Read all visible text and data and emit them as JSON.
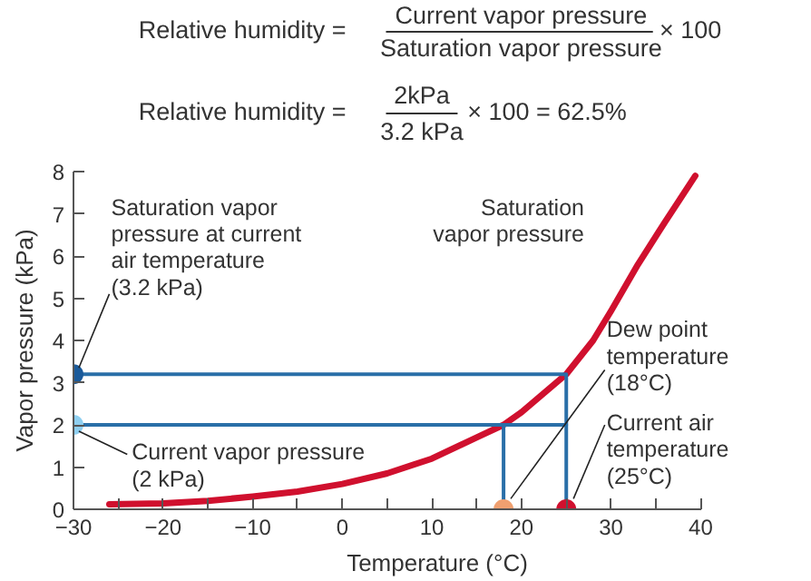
{
  "chart_data": {
    "type": "line",
    "xlabel": "Temperature (°C)",
    "ylabel": "Vapor pressure (kPa)",
    "xlim": [
      -30,
      40
    ],
    "xticks": [
      {
        "value": -30,
        "label": "−30"
      },
      {
        "value": -20,
        "label": "−20"
      },
      {
        "value": -10,
        "label": "−10"
      },
      0,
      10,
      20,
      30,
      40
    ],
    "ylim": [
      0,
      8
    ],
    "yticks": [
      0,
      1,
      2,
      3,
      4,
      5,
      6,
      7,
      8
    ],
    "grid": false,
    "line_style": "solid",
    "series": [
      {
        "color": "#d0102e",
        "x": [
          -26,
          -20,
          -15,
          -10,
          -5,
          0,
          5,
          10,
          15,
          18,
          20,
          25,
          28,
          30,
          33,
          36,
          39.4
        ],
        "values": [
          0.12,
          0.14,
          0.2,
          0.3,
          0.42,
          0.6,
          0.85,
          1.2,
          1.7,
          2.0,
          2.3,
          3.2,
          4.0,
          4.7,
          5.8,
          6.8,
          7.9
        ]
      },
      {
        "color": "#2a6fa8",
        "x": [
          -30,
          25,
          25
        ],
        "values": [
          3.2,
          3.2,
          0
        ]
      },
      {
        "color": "#2a6fa8",
        "x": [
          -30,
          25
        ],
        "values": [
          2,
          2
        ]
      },
      {
        "color": "#2a6fa8",
        "x": [
          18,
          18
        ],
        "values": [
          2,
          0
        ]
      },
      {
        "type": "scatter",
        "marker": "circle",
        "x": [
          -30,
          -30,
          18,
          25
        ],
        "values": [
          3.2,
          2,
          0,
          0
        ],
        "colors": [
          "#1a5a9a",
          "#8fcff0",
          "#f0a070",
          "#d0102e"
        ]
      }
    ],
    "annotations": [
      {
        "text": "Saturation vapor\npressure at current\nair temperature\n(3.2 kPa)",
        "x": -30,
        "y": 3.2
      },
      {
        "text": "Current vapor pressure\n(2 kPa)",
        "x": -30,
        "y": 2
      },
      "Saturation\nvapor pressure",
      {
        "text": "Dew point\ntemperature\n(18°C)",
        "x": 18,
        "y": 0
      },
      {
        "text": "Current air\ntemperature\n(25°C)",
        "x": 25,
        "y": 0
      },
      "Relative humidity =",
      "Current vapor pressure",
      "Saturation vapor pressure",
      "× 100",
      "Relative humidity =",
      "2kPa",
      "3.2 kPa",
      "× 100 = 62.5%"
    ]
  }
}
